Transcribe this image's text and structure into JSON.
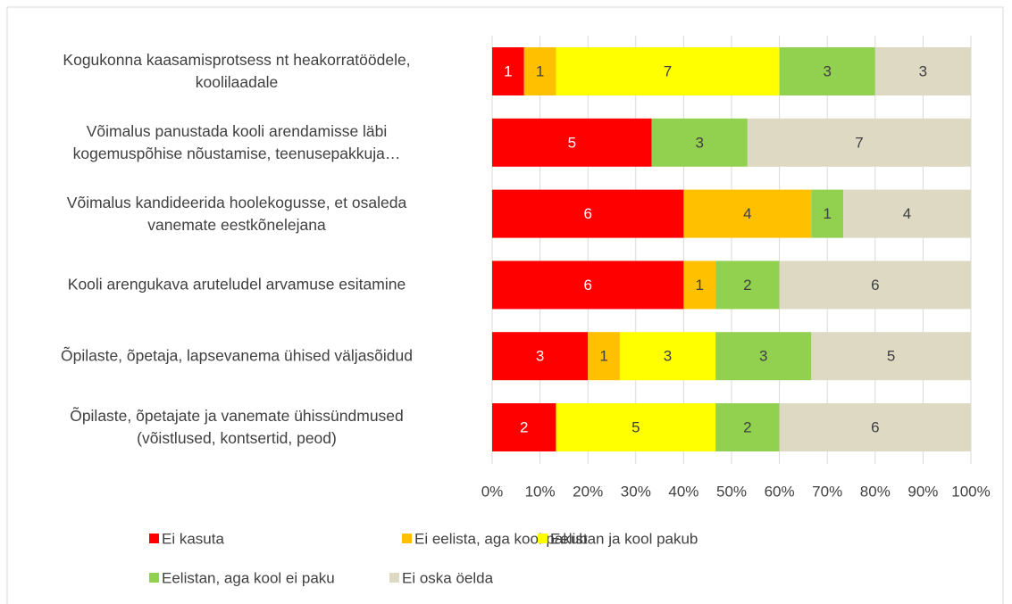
{
  "chart_data": {
    "type": "bar",
    "orientation": "horizontal",
    "stacking": "percent",
    "categories": [
      "Kogukonna kaasamisprotsess nt heakorratöödele,\nkoolilaadale",
      "Võimalus panustada kooli arendamisse läbi\nkogemuspõhise nõustamise, teenusepakkuja…",
      "Võimalus kandideerida hoolekogusse, et osaleda\nvanemate eestkõnelejana",
      "Kooli arengukava aruteludel arvamuse esitamine",
      "Õpilaste, õpetaja, lapsevanema ühised väljasõidud",
      "Õpilaste, õpetajate ja vanemate ühissündmused\n(võistlused, kontsertid, peod)"
    ],
    "series": [
      {
        "name": "Ei kasuta",
        "color": "#ff0000",
        "values": [
          1,
          5,
          6,
          6,
          3,
          2
        ]
      },
      {
        "name": "Ei eelista, aga kool pakub",
        "color": "#ffc000",
        "values": [
          1,
          0,
          4,
          1,
          1,
          0
        ]
      },
      {
        "name": "Eelistan ja kool pakub",
        "color": "#ffff00",
        "values": [
          7,
          0,
          0,
          0,
          3,
          5
        ]
      },
      {
        "name": "Eelistan, aga kool ei paku",
        "color": "#92d050",
        "values": [
          3,
          3,
          1,
          2,
          3,
          2
        ]
      },
      {
        "name": "Ei oska öelda",
        "color": "#ddd9c3",
        "values": [
          3,
          7,
          4,
          6,
          5,
          6
        ]
      }
    ],
    "xlim": [
      0,
      100
    ],
    "xticks": [
      {
        "value": 0,
        "label": "0%"
      },
      {
        "value": 10,
        "label": "10%"
      },
      {
        "value": 20,
        "label": "20%"
      },
      {
        "value": 30,
        "label": "30%"
      },
      {
        "value": 40,
        "label": "40%"
      },
      {
        "value": 50,
        "label": "50%"
      },
      {
        "value": 60,
        "label": "60%"
      },
      {
        "value": 70,
        "label": "70%"
      },
      {
        "value": 80,
        "label": "80%"
      },
      {
        "value": 90,
        "label": "90%"
      },
      {
        "value": 100,
        "label": "100%"
      }
    ],
    "grid": true,
    "legend": "bottom"
  }
}
